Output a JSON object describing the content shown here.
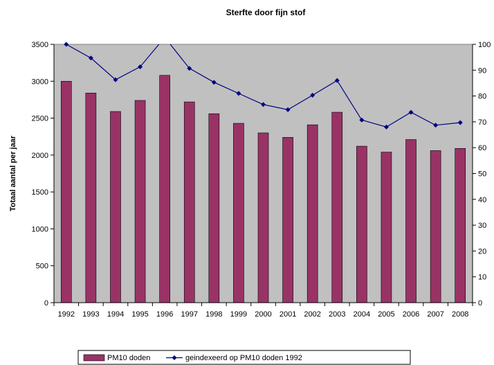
{
  "chart_data": {
    "type": "bar",
    "title": "Sterfte door fijn stof",
    "xlabel": "",
    "ylabel": "Totaal aantal per jaar",
    "y2label": "",
    "categories": [
      "1992",
      "1993",
      "1994",
      "1995",
      "1996",
      "1997",
      "1998",
      "1999",
      "2000",
      "2001",
      "2002",
      "2003",
      "2004",
      "2005",
      "2006",
      "2007",
      "2008"
    ],
    "ylim": [
      0,
      3500
    ],
    "yticks": [
      0,
      500,
      1000,
      1500,
      2000,
      2500,
      3000,
      3500
    ],
    "y2lim": [
      0,
      100
    ],
    "y2ticks": [
      0,
      10,
      20,
      30,
      40,
      50,
      60,
      70,
      80,
      90,
      100
    ],
    "series": [
      {
        "name": "PM10 doden",
        "type": "bar",
        "axis": "left",
        "color": "#993366",
        "values": [
          3000,
          2840,
          2590,
          2740,
          3080,
          2720,
          2560,
          2430,
          2300,
          2240,
          2410,
          2580,
          2120,
          2040,
          2210,
          2060,
          2090
        ]
      },
      {
        "name": "geindexeerd op PM10 doden 1992",
        "type": "line",
        "axis": "right",
        "color": "#000080",
        "values": [
          100.0,
          94.7,
          86.3,
          91.3,
          102.7,
          90.7,
          85.3,
          81.0,
          76.7,
          74.7,
          80.3,
          86.0,
          70.7,
          68.0,
          73.7,
          68.7,
          69.7
        ]
      }
    ],
    "plot_background": "#c0c0c0",
    "grid": false,
    "legend": "bottom"
  }
}
